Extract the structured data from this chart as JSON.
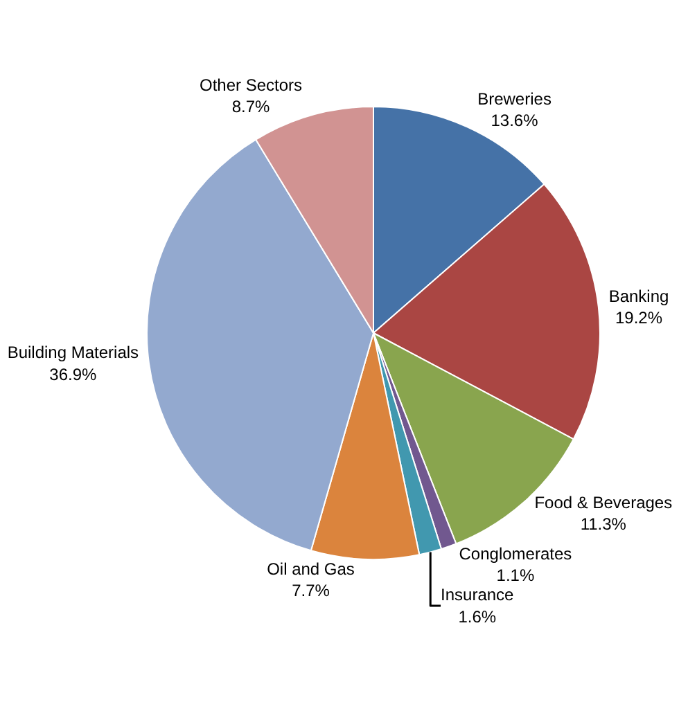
{
  "chart_data": {
    "type": "pie",
    "categories": [
      "Breweries",
      "Banking",
      "Food & Beverages",
      "Conglomerates",
      "Insurance",
      "Oil and Gas",
      "Building Materials",
      "Other Sectors"
    ],
    "values": [
      13.6,
      19.2,
      11.3,
      1.1,
      1.6,
      7.7,
      36.9,
      8.7
    ],
    "value_labels": [
      "13.6%",
      "19.2%",
      "11.3%",
      "1.1%",
      "1.6%",
      "7.7%",
      "36.9%",
      "8.7%"
    ],
    "colors": [
      "#4572a7",
      "#aa4643",
      "#89a54e",
      "#71588f",
      "#4198af",
      "#db843d",
      "#93a9cf",
      "#d19392"
    ],
    "legend": false
  }
}
